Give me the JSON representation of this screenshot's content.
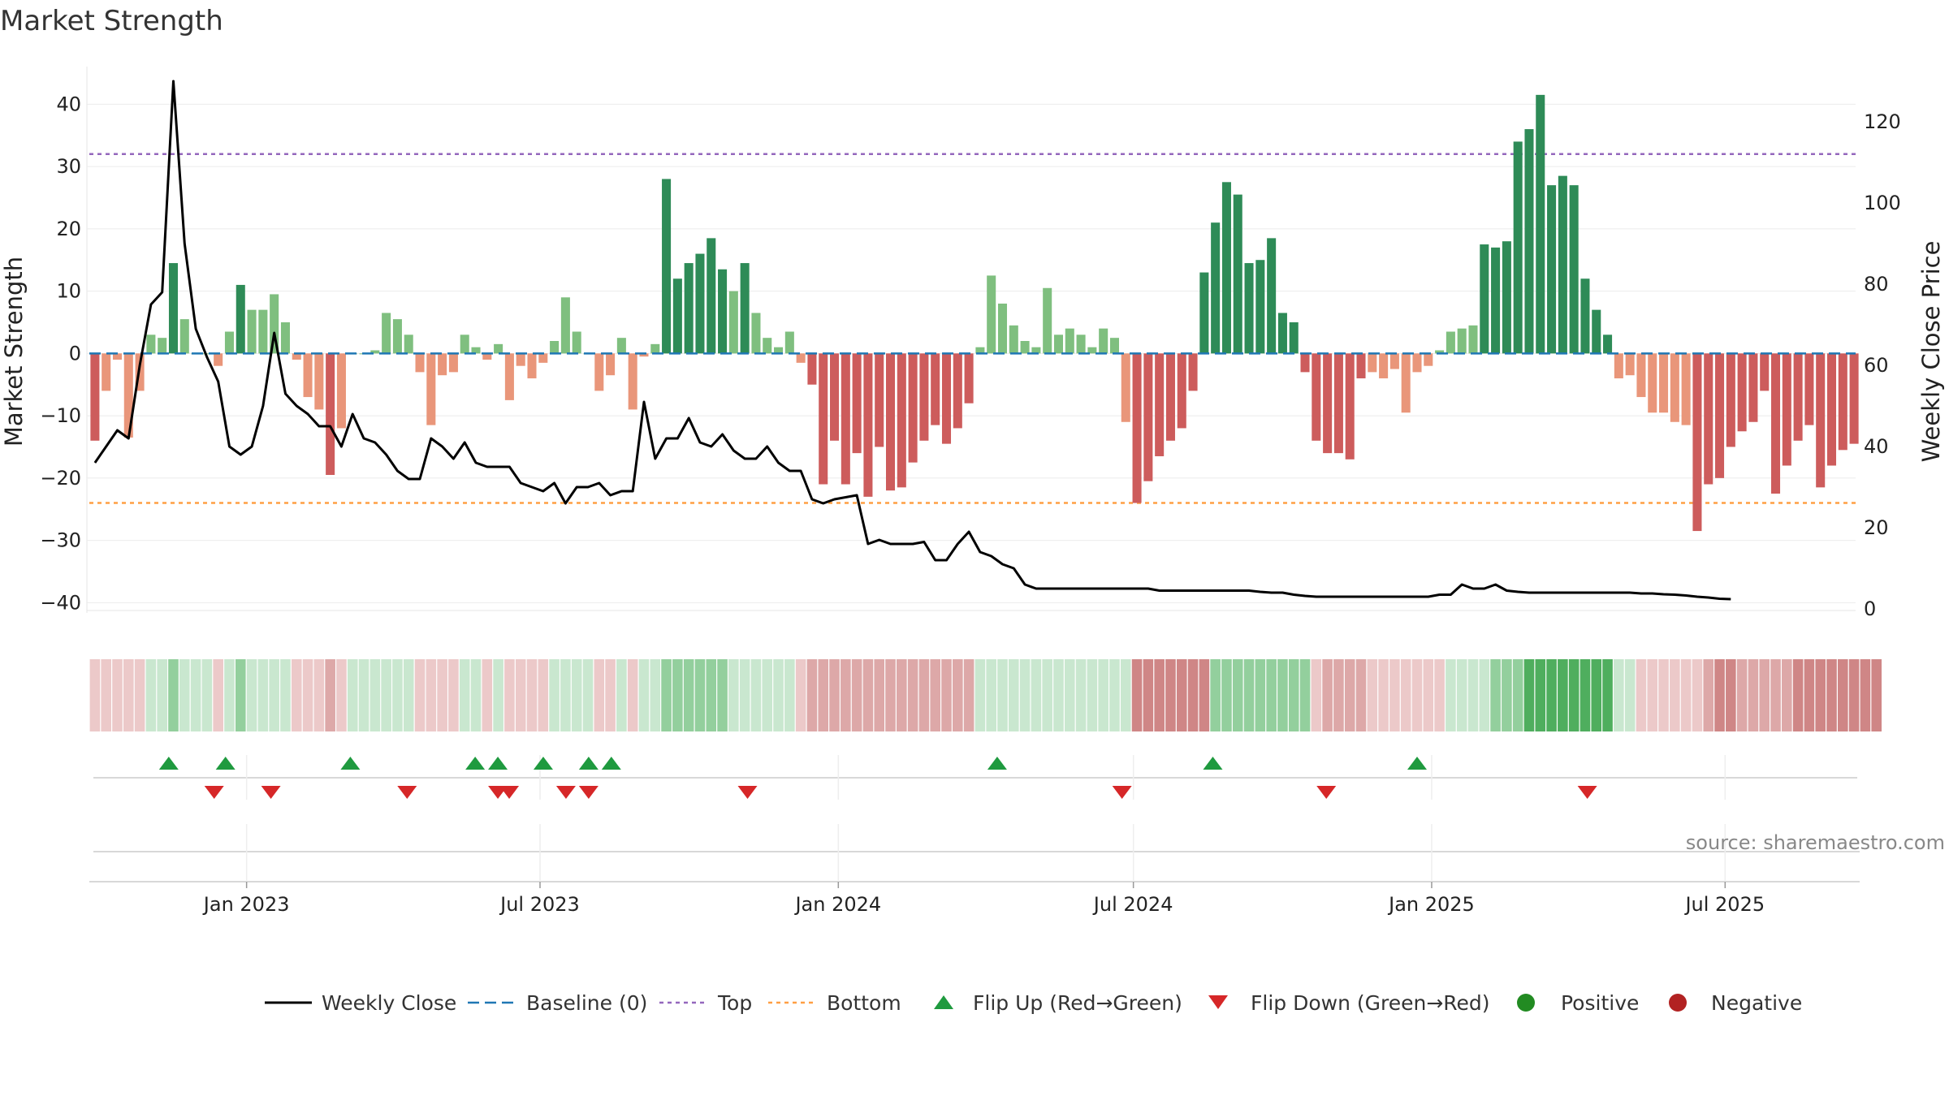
{
  "title": "Market Strength",
  "source": "source: sharemaestro.com",
  "colors": {
    "pos_strong": "#2e8b57",
    "pos_light": "#7fbf7f",
    "neg_strong": "#cd5c5c",
    "neg_light": "#e9967a",
    "baseline": "#1f77b4",
    "top": "#9467bd",
    "bottom": "#ff9f43",
    "close": "#000000",
    "flip_up": "#1f9a3f",
    "flip_down": "#d62728",
    "positive": "#228b22",
    "negative": "#b22222"
  },
  "chart_data": {
    "type": "bar",
    "title": "Market Strength",
    "ylabel": "Market Strength",
    "y2label": "Weekly Close Price",
    "ylim": [
      -41,
      45
    ],
    "y2lim": [
      0,
      132
    ],
    "yticks": [
      40,
      30,
      20,
      10,
      0,
      -10,
      -20,
      -30,
      -40
    ],
    "y2ticks": [
      120,
      100,
      80,
      60,
      40,
      20,
      0
    ],
    "xlim": [
      "2022-09-26",
      "2025-09-22"
    ],
    "xticks": [
      {
        "date": "2023-01-01",
        "label": "Jan 2023"
      },
      {
        "date": "2023-07-01",
        "label": "Jul 2023"
      },
      {
        "date": "2024-01-01",
        "label": "Jan 2024"
      },
      {
        "date": "2024-07-01",
        "label": "Jul 2024"
      },
      {
        "date": "2025-01-01",
        "label": "Jan 2025"
      },
      {
        "date": "2025-07-01",
        "label": "Jul 2025"
      }
    ],
    "start_week": "2022-09-26",
    "top_level": 32,
    "bottom_level": -24,
    "baseline": 0,
    "strength": [
      -14,
      -6,
      -1,
      -13.5,
      -6,
      3,
      2.5,
      14.5,
      5.5,
      0,
      0,
      -2,
      3.5,
      11,
      7,
      7,
      9.5,
      5,
      -1,
      -7,
      -9,
      -19.5,
      -12,
      0,
      0,
      0.5,
      6.5,
      5.5,
      3,
      -3,
      -11.5,
      -3.5,
      -3,
      3,
      1,
      -1,
      1.5,
      -7.5,
      -2,
      -4,
      -1.5,
      2,
      9,
      3.5,
      0,
      -6,
      -3.5,
      2.5,
      -9,
      -0.5,
      1.5,
      28,
      12,
      14.5,
      16,
      18.5,
      13.5,
      10,
      14.5,
      6.5,
      2.5,
      1,
      3.5,
      -1.5,
      -5,
      -21,
      -14,
      -21,
      -16,
      -23,
      -15,
      -22,
      -21.5,
      -17.5,
      -14,
      -11.5,
      -14.5,
      -12,
      -8,
      1,
      12.5,
      8,
      4.5,
      2,
      1,
      10.5,
      3,
      4,
      3,
      1,
      4,
      2.5,
      -11,
      -24,
      -20.5,
      -16.5,
      -14,
      -12,
      -6,
      13,
      21,
      27.5,
      25.5,
      14.5,
      15,
      18.5,
      6.5,
      5,
      -3,
      -14,
      -16,
      -16,
      -17,
      -4,
      -3,
      -4,
      -2.5,
      -9.5,
      -3,
      -2,
      0.5,
      3.5,
      4,
      4.5,
      17.5,
      17,
      18,
      34,
      36,
      41.5,
      27,
      28.5,
      27,
      12,
      7,
      3,
      -4,
      -3.5,
      -7,
      -9.5,
      -9.5,
      -11,
      -11.5,
      -28.5,
      -21,
      -20,
      -15,
      -12.5,
      -11,
      -6,
      -22.5,
      -18,
      -14,
      -11.5,
      -21.5,
      -18,
      -15.5,
      -14.5
    ],
    "close": [
      36,
      40,
      44,
      42,
      60,
      75,
      78,
      130,
      90,
      69,
      62,
      56,
      40,
      38,
      40,
      50,
      68,
      53,
      50,
      48,
      45,
      45,
      40,
      48,
      42,
      41,
      38,
      34,
      32,
      32,
      42,
      40,
      37,
      41,
      36,
      35,
      35,
      35,
      31,
      30,
      29,
      31,
      26,
      30,
      30,
      31,
      28,
      29,
      29,
      51,
      37,
      42,
      42,
      47,
      41,
      40,
      43,
      39,
      37,
      37,
      40,
      36,
      34,
      34,
      27,
      26,
      27,
      27.5,
      28,
      16,
      17,
      16,
      16,
      16,
      16.5,
      12,
      12,
      16,
      19,
      14,
      13,
      11,
      10,
      6,
      5,
      5,
      5,
      5,
      5,
      5,
      5,
      5,
      5,
      5,
      5,
      4.5,
      4.5,
      4.5,
      4.5,
      4.5,
      4.5,
      4.5,
      4.5,
      4.5,
      4.2,
      4,
      4,
      3.5,
      3.2,
      3,
      3,
      3,
      3,
      3,
      3,
      3,
      3,
      3,
      3,
      3,
      3.5,
      3.5,
      6,
      5,
      5,
      6,
      4.5,
      4.2,
      4,
      4,
      4,
      4,
      4,
      4,
      4,
      4,
      4,
      4,
      3.8,
      3.8,
      3.6,
      3.5,
      3.3,
      3,
      2.8,
      2.5,
      2.4
    ],
    "regime": [
      -1,
      -1,
      -1,
      -1,
      -1,
      1,
      1,
      2,
      1,
      1,
      1,
      -1,
      1,
      2,
      1,
      1,
      1,
      1,
      -1,
      -1,
      -1,
      -2,
      -1,
      1,
      1,
      1,
      1,
      1,
      1,
      -1,
      -1,
      -1,
      -1,
      1,
      1,
      -1,
      1,
      -1,
      -1,
      -1,
      -1,
      1,
      1,
      1,
      1,
      -1,
      -1,
      1,
      -1,
      1,
      1,
      2,
      2,
      2,
      2,
      2,
      2,
      1,
      1,
      1,
      1,
      1,
      1,
      -1,
      -2,
      -2,
      -2,
      -2,
      -2,
      -2,
      -2,
      -2,
      -2,
      -2,
      -2,
      -2,
      -2,
      -2,
      -2,
      1,
      1,
      1,
      1,
      1,
      1,
      1,
      1,
      1,
      1,
      1,
      1,
      1,
      1,
      -3,
      -3,
      -3,
      -3,
      -3,
      -3,
      -3,
      2,
      2,
      2,
      2,
      2,
      2,
      2,
      2,
      2,
      -1,
      -2,
      -2,
      -2,
      -2,
      -1,
      -1,
      -1,
      -1,
      -1,
      -1,
      -1,
      1,
      1,
      1,
      1,
      2,
      2,
      2,
      3,
      3,
      3,
      3,
      3,
      3,
      3,
      3,
      1,
      1,
      -1,
      -1,
      -1,
      -1,
      -1,
      -1,
      -2,
      -3,
      -3,
      -2,
      -2,
      -2,
      -2,
      -2,
      -3,
      -3,
      -3,
      -3,
      -3,
      -3,
      -3,
      -3
    ],
    "flip_up": [
      "2022-11-14",
      "2022-12-19",
      "2023-03-06",
      "2023-05-22",
      "2023-06-05",
      "2023-07-03",
      "2023-07-31",
      "2023-08-14",
      "2024-04-08",
      "2024-08-19",
      "2024-12-23"
    ],
    "flip_down": [
      "2022-12-12",
      "2023-01-16",
      "2023-04-10",
      "2023-06-05",
      "2023-06-12",
      "2023-07-17",
      "2023-07-31",
      "2023-11-06",
      "2024-06-24",
      "2024-10-28",
      "2025-04-07"
    ]
  },
  "legend": [
    {
      "key": "close",
      "label": "Weekly Close"
    },
    {
      "key": "baseline",
      "label": "Baseline (0)"
    },
    {
      "key": "top",
      "label": "Top"
    },
    {
      "key": "bottom",
      "label": "Bottom"
    },
    {
      "key": "flip_up",
      "label": "Flip Up (Red→Green)"
    },
    {
      "key": "flip_down",
      "label": "Flip Down (Green→Red)"
    },
    {
      "key": "positive",
      "label": "Positive"
    },
    {
      "key": "negative",
      "label": "Negative"
    }
  ]
}
